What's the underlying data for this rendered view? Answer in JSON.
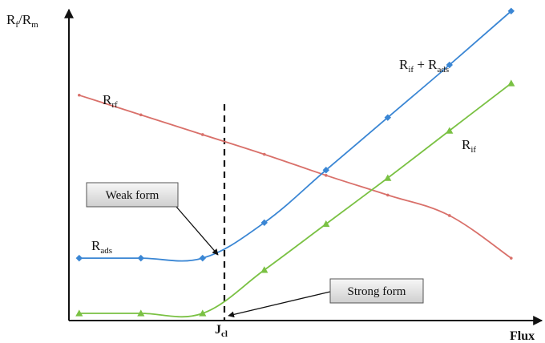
{
  "chart_data": {
    "type": "line",
    "xlabel": "Flux",
    "ylabel": {
      "main": "R",
      "sub1": "f",
      "sep": "/R",
      "sub2": "m"
    },
    "x_tick_label": {
      "main": "J",
      "sub": "cl"
    },
    "grid": false,
    "x_domain": [
      0,
      8
    ],
    "y_domain": [
      0,
      10
    ],
    "series": [
      {
        "key": "rrf",
        "label": {
          "main": "R",
          "sub": "rf"
        },
        "color": "#d9706a",
        "marker": "dot",
        "points": [
          [
            0.4,
            8.3
          ],
          [
            1.4,
            7.55
          ],
          [
            2.4,
            6.8
          ],
          [
            3.4,
            6.05
          ],
          [
            4.4,
            5.25
          ],
          [
            5.4,
            4.5
          ],
          [
            6.4,
            3.72
          ],
          [
            7.4,
            2.1
          ]
        ]
      },
      {
        "key": "rif_ads",
        "label": {
          "main": "R",
          "sub": "if",
          "mid": " + R",
          "sub2": "ads"
        },
        "color": "#3a86d4",
        "marker": "diamond",
        "points": [
          [
            0.4,
            2.1
          ],
          [
            1.4,
            2.1
          ],
          [
            2.4,
            2.1
          ],
          [
            3.4,
            3.45
          ],
          [
            4.4,
            5.45
          ],
          [
            5.4,
            7.45
          ],
          [
            6.4,
            9.45
          ],
          [
            7.4,
            11.5
          ]
        ]
      },
      {
        "key": "rif",
        "label": {
          "main": "R",
          "sub": "if"
        },
        "color": "#7ac143",
        "marker": "triangle",
        "points": [
          [
            0.4,
            0.0
          ],
          [
            1.4,
            0.0
          ],
          [
            2.4,
            0.0
          ],
          [
            3.4,
            1.65
          ],
          [
            4.4,
            3.4
          ],
          [
            5.4,
            5.15
          ],
          [
            6.4,
            6.95
          ],
          [
            7.4,
            8.75
          ]
        ]
      }
    ],
    "extra_labels": {
      "rads": {
        "main": "R",
        "sub": "ads"
      }
    },
    "critical_flux_x": 2.4,
    "annotations": [
      {
        "key": "weak",
        "text": "Weak form"
      },
      {
        "key": "strong",
        "text": "Strong form"
      }
    ]
  }
}
